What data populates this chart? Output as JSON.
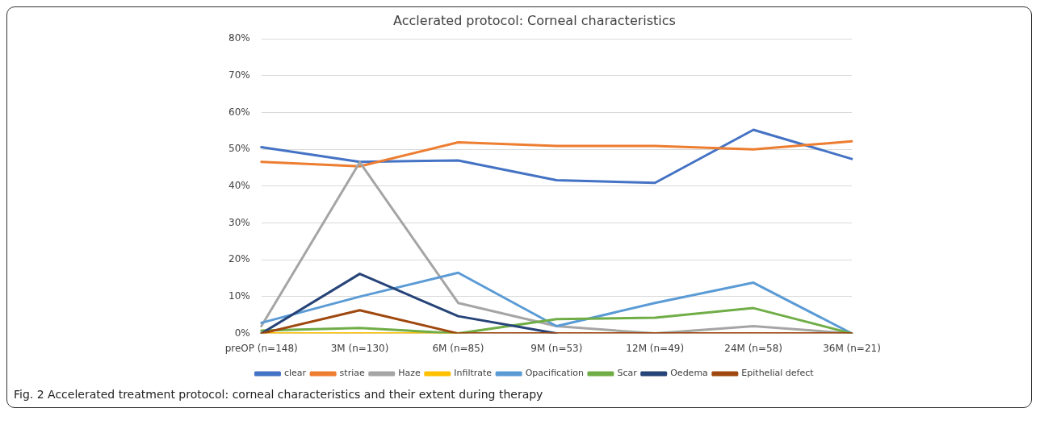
{
  "chart_data": {
    "type": "line",
    "title": "Acclerated protocol: Corneal characteristics",
    "categories": [
      "preOP (n=148)",
      "3M (n=130)",
      "6M (n=85)",
      "9M (n=53)",
      "12M (n=49)",
      "24M (n=58)",
      "36M (n=21)"
    ],
    "series": [
      {
        "name": "clear",
        "color": "#4472c4",
        "values": [
          50.6,
          46.6,
          47.0,
          41.6,
          40.9,
          55.3,
          47.4
        ]
      },
      {
        "name": "striae",
        "color": "#ed7d31",
        "values": [
          46.6,
          45.4,
          51.9,
          50.9,
          50.9,
          50.0,
          52.2
        ]
      },
      {
        "name": "Haze",
        "color": "#a5a5a5",
        "values": [
          2,
          46.5,
          8.3,
          2,
          0,
          2,
          0
        ]
      },
      {
        "name": "Infiltrate",
        "color": "#ffc000",
        "values": [
          0,
          0,
          0,
          null,
          null,
          null,
          null
        ]
      },
      {
        "name": "Opacification",
        "color": "#5b9bd5",
        "values": [
          2.9,
          10,
          16.5,
          2,
          8.3,
          13.8,
          0
        ]
      },
      {
        "name": "Scar",
        "color": "#70ad47",
        "values": [
          0.8,
          1.5,
          0,
          3.9,
          4.3,
          6.9,
          0
        ]
      },
      {
        "name": "Oedema",
        "color": "#264478",
        "values": [
          0,
          16.2,
          4.7,
          0,
          null,
          null,
          null
        ]
      },
      {
        "name": "Epithelial defect",
        "color": "#9e480e",
        "values": [
          0,
          6.3,
          0,
          0,
          0,
          0,
          0
        ]
      }
    ],
    "ylim": [
      0,
      80
    ],
    "yticks": [
      {
        "value": 0,
        "label": "0%"
      },
      {
        "value": 10,
        "label": "10%"
      },
      {
        "value": 20,
        "label": "20%"
      },
      {
        "value": 30,
        "label": "30%"
      },
      {
        "value": 40,
        "label": "40%"
      },
      {
        "value": 50,
        "label": "50%"
      },
      {
        "value": 60,
        "label": "60%"
      },
      {
        "value": 70,
        "label": "70%"
      },
      {
        "value": 80,
        "label": "80%"
      }
    ],
    "grid": "y",
    "legend": "bottom",
    "marker": "none",
    "line_style": "solid",
    "annotations": [
      "Fig. 2 Accelerated treatment protocol: corneal characteristics and their extent during therapy"
    ]
  }
}
